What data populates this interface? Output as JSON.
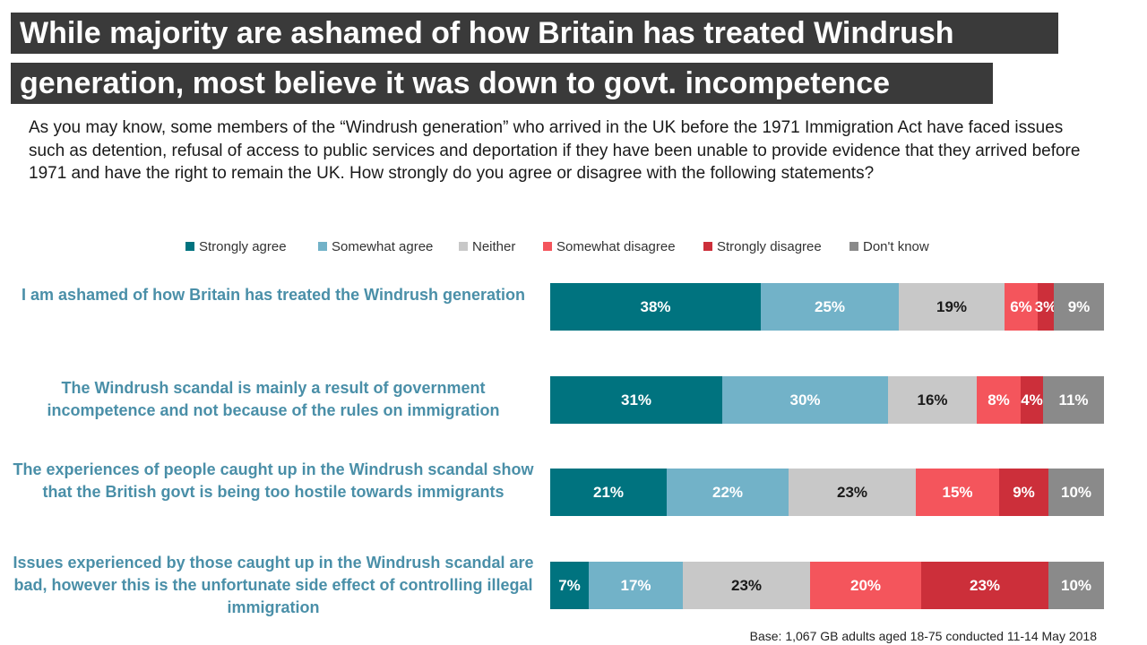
{
  "title": {
    "line1": "While majority are ashamed of how Britain has treated Windrush",
    "line2": "generation, most believe it was down to govt. incompetence"
  },
  "question": "As you may know, some members of the “Windrush generation” who arrived in the UK before the 1971 Immigration Act have faced issues such as detention, refusal of access to public services and deportation if they have been unable to provide evidence that they arrived before 1971 and have the right to remain the UK. How strongly do you agree or disagree with the following statements?",
  "base_note": "Base: 1,067 GB adults aged 18-75 conducted 11-14 May 2018",
  "colors": {
    "strongly_agree": "#00737f",
    "somewhat_agree": "#72b2c8",
    "neither": "#c8c8c8",
    "somewhat_disagree": "#f4555c",
    "strongly_disagree": "#cc2f3a",
    "dont_know": "#8a8a8a"
  },
  "chart_data": {
    "type": "bar",
    "orientation": "horizontal",
    "stacked": true,
    "unit": "%",
    "legend_position": "top",
    "categories": [
      "I am ashamed of how Britain has treated the Windrush generation",
      "The Windrush scandal is mainly a result of government incompetence and not because of the rules on immigration",
      "The experiences of people caught up in the Windrush scandal show that the British govt is being too hostile towards immigrants",
      "Issues experienced by those caught up in the Windrush scandal are bad, however this is the unfortunate side effect of controlling illegal immigration"
    ],
    "series": [
      {
        "name": "Strongly  agree",
        "color": "#00737f",
        "text_color": "#ffffff",
        "values": [
          38,
          31,
          21,
          7
        ]
      },
      {
        "name": "Somewhat agree",
        "color": "#72b2c8",
        "text_color": "#ffffff",
        "values": [
          25,
          30,
          22,
          17
        ]
      },
      {
        "name": "Neither",
        "color": "#c8c8c8",
        "text_color": "#1a1a1a",
        "values": [
          19,
          16,
          23,
          23
        ]
      },
      {
        "name": "Somewhat disagree",
        "color": "#f4555c",
        "text_color": "#ffffff",
        "values": [
          6,
          8,
          15,
          20
        ]
      },
      {
        "name": "Strongly disagree",
        "color": "#cc2f3a",
        "text_color": "#ffffff",
        "values": [
          3,
          4,
          9,
          23
        ]
      },
      {
        "name": "Don't know",
        "color": "#8a8a8a",
        "text_color": "#ffffff",
        "values": [
          9,
          11,
          10,
          10
        ]
      }
    ]
  }
}
